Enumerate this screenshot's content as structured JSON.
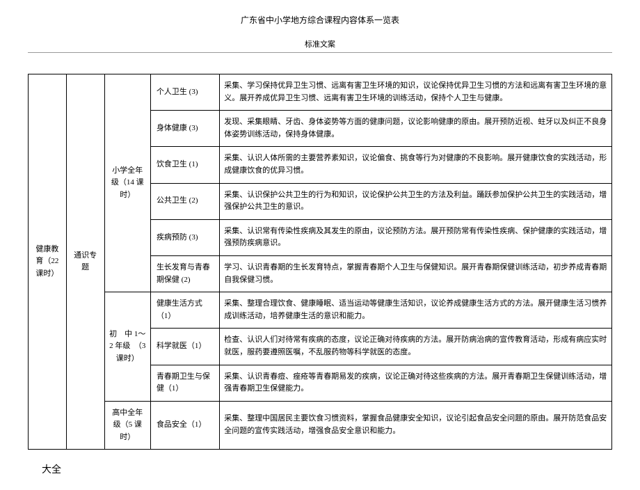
{
  "header": {
    "title": "广东省中小学地方综合课程内容体系一览表",
    "subtitle": "标准文案"
  },
  "footer": {
    "note": "大全"
  },
  "table": {
    "category": "健康教育（22 课时）",
    "type": "通识专题",
    "sections": [
      {
        "grade": "小学全年级（14 课时）",
        "rows": [
          {
            "topic": "个人卫生 (3)",
            "desc": "采集、学习保持优异卫生习惯、远离有害卫生环境的知识，议论保持优异卫生习惯的方法和远离有害卫生环境的意义。展开养成优异卫生习惯、远离有害卫生环境的训练活动，保持个人卫生与健康。"
          },
          {
            "topic": "身体健康 (3)",
            "desc": "发现、采集眼睛、牙齿、身体姿势等方面的健康问题，议论影响健康的原由。展开预防近视、蛀牙以及纠正不良身体姿势训练活动，保持身体健康。"
          },
          {
            "topic": "饮食卫生 (1)",
            "desc": "采集、认识人体所需的主要营养素知识，议论偏食、挑食等行为对健康的不良影响。展开健康饮食的实践活动，形成健康饮食的优异习惯。"
          },
          {
            "topic": "公共卫生 (2)",
            "desc": "采集、认识保护公共卫生的行为和知识，议论保护公共卫生的方法及利益。踊跃参加保护公共卫生的实践活动，增强保护公共卫生的意识。"
          },
          {
            "topic": "疾病预防 (3)",
            "desc": "采集、认识常有传染性疾病及其发生的原由，议论预防方法。展开预防常有传染性疾病、保护健康的实践活动，增强预防疾病意识。"
          },
          {
            "topic": "生长发育与青春期保健 (2)",
            "desc": "学习、认识青春期的生长发育特点，掌握青春期个人卫生与保健知识。展开青春期保健训练活动，初步养成青春期自我保健习惯。"
          }
        ]
      },
      {
        "grade": "初　中 1～2 年级　（3 课时）",
        "rows": [
          {
            "topic": "健康生活方式（1）",
            "desc": "采集、整理合理饮食、健康睡眠、适当运动等健康生活知识，议论养成健康生活方式的方法。展开健康生活习惯养成训练活动，培养健康生活的意识和能力。"
          },
          {
            "topic": "科学就医（1）",
            "desc": "检查、认识人们对待常有疾病的态度，议论正确对待疾病的方法。展开防病治病的宣传教育活动，形成有病应实时就医，服药要遵照医嘱，不乱服药物等科学就医的态度。"
          },
          {
            "topic": "青春期卫生与保健（1）",
            "desc": "采集、认识青春痘、痤疮等青春期易发的疾病，议论正确对待这些疾病的方法。展开青春期卫生保健训练活动，增强青春期卫生保健能力。"
          }
        ]
      },
      {
        "grade": "高中全年级（5 课时）",
        "rows": [
          {
            "topic": "食品安全（1）",
            "desc": "采集、整理中国居民主要饮食习惯资料，掌握食品健康安全知识，议论引起食品安全问题的原由。展开防范食品安全问题的宣传实践活动，增强食品安全意识和能力。"
          }
        ]
      }
    ]
  }
}
